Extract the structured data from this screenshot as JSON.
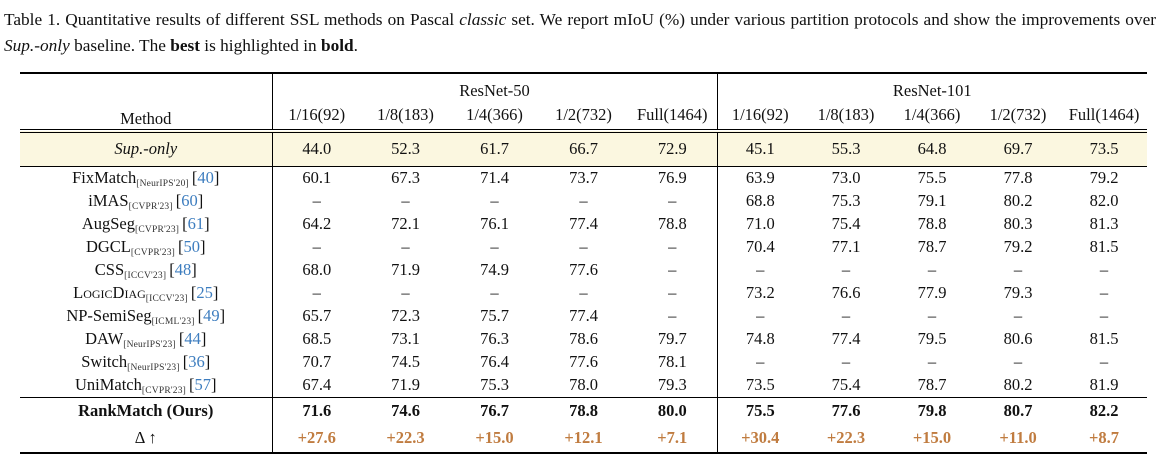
{
  "caption": {
    "part1": "Table 1.  Quantitative results of different SSL methods on Pascal ",
    "italic1": "classic",
    "part2": " set.  We report mIoU (%) under various partition protocols and show the improvements over ",
    "italic2": "Sup.-only",
    "part3": " baseline. The ",
    "bold1": "best",
    "part4": " is highlighted in ",
    "bold2": "bold",
    "part5": "."
  },
  "colors": {
    "citation_blue": "#3d7dbf",
    "delta_orange": "#c07c40",
    "baseline_row_bg": "#fbf7e0"
  },
  "table": {
    "header": {
      "method": "Method",
      "groups": [
        {
          "label": "ResNet-50",
          "cols": [
            "1/16(92)",
            "1/8(183)",
            "1/4(366)",
            "1/2(732)",
            "Full(1464)"
          ]
        },
        {
          "label": "ResNet-101",
          "cols": [
            "1/16(92)",
            "1/8(183)",
            "1/4(366)",
            "1/2(732)",
            "Full(1464)"
          ]
        }
      ]
    },
    "baseline": {
      "method": "Sup.-only",
      "values": [
        "44.0",
        "52.3",
        "61.7",
        "66.7",
        "72.9",
        "45.1",
        "55.3",
        "64.8",
        "69.7",
        "73.5"
      ]
    },
    "methods": [
      {
        "method": "FixMatch",
        "smallcaps": false,
        "venue": "[NeurIPS'20]",
        "cite": "[40]",
        "values": [
          "60.1",
          "67.3",
          "71.4",
          "73.7",
          "76.9",
          "63.9",
          "73.0",
          "75.5",
          "77.8",
          "79.2"
        ]
      },
      {
        "method": "iMAS",
        "smallcaps": false,
        "venue": "[CVPR'23]",
        "cite": "[60]",
        "values": [
          "–",
          "–",
          "–",
          "–",
          "–",
          "68.8",
          "75.3",
          "79.1",
          "80.2",
          "82.0"
        ]
      },
      {
        "method": "AugSeg",
        "smallcaps": false,
        "venue": "[CVPR'23]",
        "cite": "[61]",
        "values": [
          "64.2",
          "72.1",
          "76.1",
          "77.4",
          "78.8",
          "71.0",
          "75.4",
          "78.8",
          "80.3",
          "81.3"
        ]
      },
      {
        "method": "DGCL",
        "smallcaps": false,
        "venue": "[CVPR'23]",
        "cite": "[50]",
        "values": [
          "–",
          "–",
          "–",
          "–",
          "–",
          "70.4",
          "77.1",
          "78.7",
          "79.2",
          "81.5"
        ]
      },
      {
        "method": "CSS",
        "smallcaps": false,
        "venue": "[ICCV'23]",
        "cite": "[48]",
        "values": [
          "68.0",
          "71.9",
          "74.9",
          "77.6",
          "–",
          "–",
          "–",
          "–",
          "–",
          "–"
        ]
      },
      {
        "method": "LogicDiag",
        "smallcaps": true,
        "venue": "[ICCV'23]",
        "cite": "[25]",
        "values": [
          "–",
          "–",
          "–",
          "–",
          "–",
          "73.2",
          "76.6",
          "77.9",
          "79.3",
          "–"
        ]
      },
      {
        "method": "NP-SemiSeg",
        "smallcaps": false,
        "venue": "[ICML'23]",
        "cite": "[49]",
        "values": [
          "65.7",
          "72.3",
          "75.7",
          "77.4",
          "–",
          "–",
          "–",
          "–",
          "–",
          "–"
        ]
      },
      {
        "method": "DAW",
        "smallcaps": false,
        "venue": "[NeurIPS'23]",
        "cite": "[44]",
        "values": [
          "68.5",
          "73.1",
          "76.3",
          "78.6",
          "79.7",
          "74.8",
          "77.4",
          "79.5",
          "80.6",
          "81.5"
        ]
      },
      {
        "method": "Switch",
        "smallcaps": false,
        "venue": "[NeurIPS'23]",
        "cite": "[36]",
        "values": [
          "70.7",
          "74.5",
          "76.4",
          "77.6",
          "78.1",
          "–",
          "–",
          "–",
          "–",
          "–"
        ]
      },
      {
        "method": "UniMatch",
        "smallcaps": false,
        "venue": "[CVPR'23]",
        "cite": "[57]",
        "values": [
          "67.4",
          "71.9",
          "75.3",
          "78.0",
          "79.3",
          "73.5",
          "75.4",
          "78.7",
          "80.2",
          "81.9"
        ]
      }
    ],
    "ours": {
      "method": "RankMatch (Ours)",
      "values": [
        "71.6",
        "74.6",
        "76.7",
        "78.8",
        "80.0",
        "75.5",
        "77.6",
        "79.8",
        "80.7",
        "82.2"
      ]
    },
    "delta": {
      "method": "Δ ↑",
      "values": [
        "+27.6",
        "+22.3",
        "+15.0",
        "+12.1",
        "+7.1",
        "+30.4",
        "+22.3",
        "+15.0",
        "+11.0",
        "+8.7"
      ]
    }
  }
}
